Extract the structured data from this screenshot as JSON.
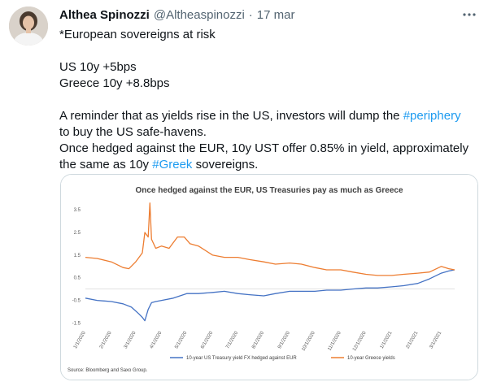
{
  "tweet": {
    "author_name": "Althea Spinozzi",
    "handle": "@Altheaspinozzi",
    "separator": "·",
    "date": "17 mar",
    "more_icon": "more-dots-icon",
    "text": {
      "line1": "*European sovereigns at risk",
      "line2": "US 10y +5bps",
      "line3": "Greece 10y +8.8bps",
      "line4_pre": "A reminder that as yields rise in the US, investors will dump the ",
      "line4_tag": "#periphery",
      "line5": "to buy the US safe-havens.",
      "line6": "Once hedged against the EUR, 10y UST offer 0.85% in yield, approximately",
      "line7_pre": "the same as 10y ",
      "line7_tag": "#Greek",
      "line7_post": " sovereigns."
    },
    "link_color": "#1d9bf0"
  },
  "chart_data": {
    "type": "line",
    "title": "Once hedged against the EUR, US Treasuries pay as much as Greece",
    "source": "Source: Bloomberg and Saxo Group.",
    "ylim": [
      -1.7,
      3.9
    ],
    "yticks": [
      "3.5",
      "2.5",
      "1.5",
      "0.5",
      "-0.5",
      "-1.5"
    ],
    "ytick_values": [
      3.5,
      2.5,
      1.5,
      0.5,
      -0.5,
      -1.5
    ],
    "x_range": [
      "2020-01-01",
      "2021-03-17"
    ],
    "xticks": [
      "1/1/2020",
      "2/1/2020",
      "3/1/2020",
      "4/1/2020",
      "5/1/2020",
      "6/1/2020",
      "7/1/2020",
      "8/1/2020",
      "9/1/2020",
      "10/1/2020",
      "11/1/2020",
      "12/1/2020",
      "1/1/2021",
      "2/1/2021",
      "3/1/2021"
    ],
    "xtick_dates": [
      "2020-01-01",
      "2020-02-01",
      "2020-03-01",
      "2020-04-01",
      "2020-05-01",
      "2020-06-01",
      "2020-07-01",
      "2020-08-01",
      "2020-09-01",
      "2020-10-01",
      "2020-11-01",
      "2020-12-01",
      "2021-01-01",
      "2021-02-01",
      "2021-03-01"
    ],
    "grid": false,
    "legend": "bottom",
    "series": [
      {
        "name": "10-year US Treasury yield FX hedged against EUR",
        "color": "#4472c4",
        "points": [
          [
            "2020-01-01",
            -0.4
          ],
          [
            "2020-01-15",
            -0.5
          ],
          [
            "2020-02-01",
            -0.55
          ],
          [
            "2020-02-15",
            -0.65
          ],
          [
            "2020-02-25",
            -0.8
          ],
          [
            "2020-03-05",
            -1.1
          ],
          [
            "2020-03-09",
            -1.25
          ],
          [
            "2020-03-12",
            -1.4
          ],
          [
            "2020-03-16",
            -0.9
          ],
          [
            "2020-03-20",
            -0.6
          ],
          [
            "2020-03-25",
            -0.55
          ],
          [
            "2020-04-01",
            -0.5
          ],
          [
            "2020-04-15",
            -0.4
          ],
          [
            "2020-05-01",
            -0.2
          ],
          [
            "2020-05-15",
            -0.2
          ],
          [
            "2020-06-01",
            -0.15
          ],
          [
            "2020-06-15",
            -0.1
          ],
          [
            "2020-07-01",
            -0.2
          ],
          [
            "2020-07-15",
            -0.25
          ],
          [
            "2020-08-01",
            -0.3
          ],
          [
            "2020-08-15",
            -0.2
          ],
          [
            "2020-09-01",
            -0.1
          ],
          [
            "2020-09-15",
            -0.1
          ],
          [
            "2020-10-01",
            -0.1
          ],
          [
            "2020-10-15",
            -0.05
          ],
          [
            "2020-11-01",
            -0.05
          ],
          [
            "2020-11-15",
            0.0
          ],
          [
            "2020-12-01",
            0.05
          ],
          [
            "2020-12-15",
            0.05
          ],
          [
            "2021-01-01",
            0.1
          ],
          [
            "2021-01-15",
            0.15
          ],
          [
            "2021-02-01",
            0.25
          ],
          [
            "2021-02-15",
            0.45
          ],
          [
            "2021-03-01",
            0.7
          ],
          [
            "2021-03-10",
            0.8
          ],
          [
            "2021-03-17",
            0.85
          ]
        ]
      },
      {
        "name": "10-year Greece yields",
        "color": "#ed7d31",
        "points": [
          [
            "2020-01-01",
            1.4
          ],
          [
            "2020-01-15",
            1.35
          ],
          [
            "2020-02-01",
            1.2
          ],
          [
            "2020-02-15",
            0.95
          ],
          [
            "2020-02-22",
            0.9
          ],
          [
            "2020-03-01",
            1.2
          ],
          [
            "2020-03-09",
            1.6
          ],
          [
            "2020-03-12",
            2.5
          ],
          [
            "2020-03-16",
            2.3
          ],
          [
            "2020-03-18",
            3.8
          ],
          [
            "2020-03-20",
            2.2
          ],
          [
            "2020-03-25",
            1.8
          ],
          [
            "2020-04-01",
            1.9
          ],
          [
            "2020-04-10",
            1.8
          ],
          [
            "2020-04-20",
            2.3
          ],
          [
            "2020-04-28",
            2.3
          ],
          [
            "2020-05-05",
            2.0
          ],
          [
            "2020-05-15",
            1.9
          ],
          [
            "2020-06-01",
            1.5
          ],
          [
            "2020-06-15",
            1.4
          ],
          [
            "2020-07-01",
            1.4
          ],
          [
            "2020-07-15",
            1.3
          ],
          [
            "2020-08-01",
            1.2
          ],
          [
            "2020-08-15",
            1.1
          ],
          [
            "2020-09-01",
            1.15
          ],
          [
            "2020-09-15",
            1.1
          ],
          [
            "2020-10-01",
            0.95
          ],
          [
            "2020-10-15",
            0.85
          ],
          [
            "2020-11-01",
            0.85
          ],
          [
            "2020-11-15",
            0.75
          ],
          [
            "2020-12-01",
            0.65
          ],
          [
            "2020-12-15",
            0.6
          ],
          [
            "2021-01-01",
            0.6
          ],
          [
            "2021-01-15",
            0.65
          ],
          [
            "2021-02-01",
            0.7
          ],
          [
            "2021-02-15",
            0.75
          ],
          [
            "2021-03-01",
            1.0
          ],
          [
            "2021-03-10",
            0.9
          ],
          [
            "2021-03-17",
            0.85
          ]
        ]
      }
    ]
  }
}
